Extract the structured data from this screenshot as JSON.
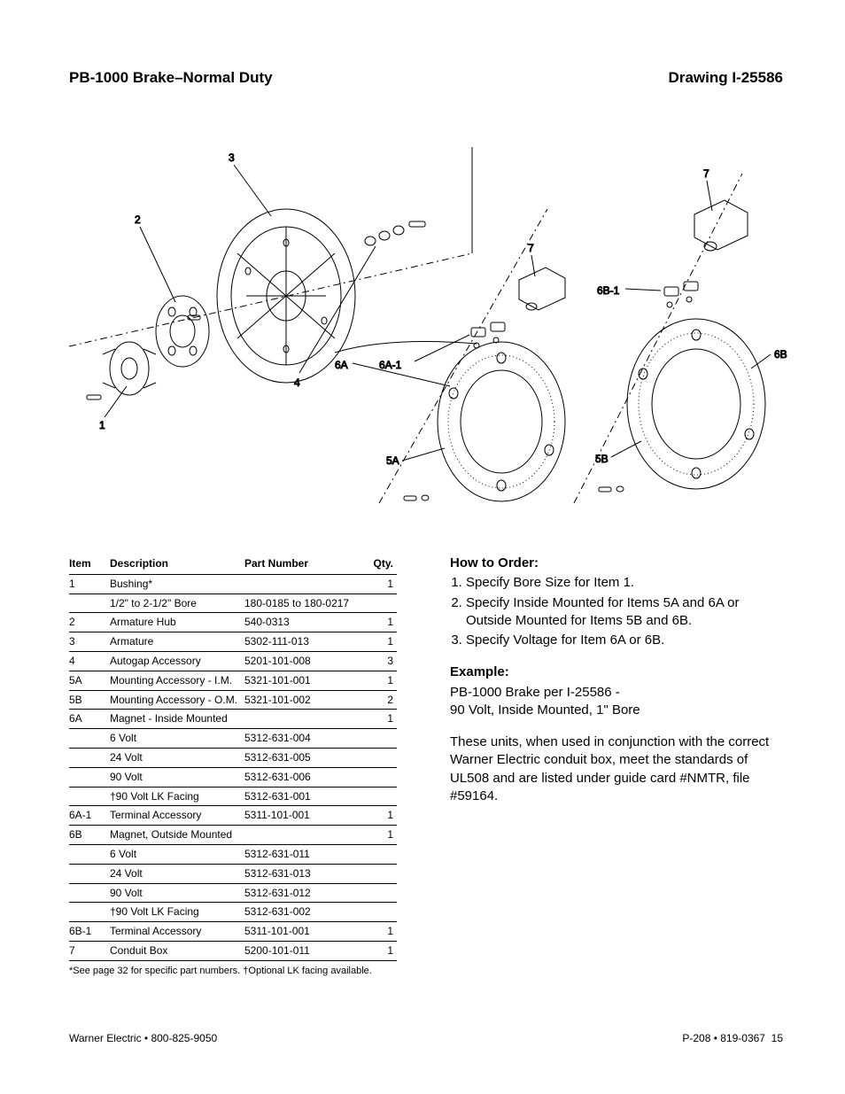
{
  "header": {
    "title_left": "PB-1000 Brake–Normal Duty",
    "title_right": "Drawing I-25586"
  },
  "figure": {
    "callout_font_size": 12,
    "line_color": "#000000",
    "callouts": [
      "1",
      "2",
      "3",
      "4",
      "5A",
      "5B",
      "6A",
      "6A-1",
      "6B",
      "6B-1",
      "7",
      "7"
    ]
  },
  "parts_table": {
    "columns": [
      "Item",
      "Description",
      "Part Number",
      "Qty."
    ],
    "rows": [
      {
        "item": "1",
        "desc": "Bushing*",
        "pn": "",
        "qty": "1"
      },
      {
        "item": "",
        "desc": "1/2\" to 2-1/2\" Bore",
        "pn": "180-0185 to 180-0217",
        "qty": ""
      },
      {
        "item": "2",
        "desc": "Armature Hub",
        "pn": "540-0313",
        "qty": "1"
      },
      {
        "item": "3",
        "desc": "Armature",
        "pn": "5302-111-013",
        "qty": "1"
      },
      {
        "item": "4",
        "desc": "Autogap Accessory",
        "pn": "5201-101-008",
        "qty": "3"
      },
      {
        "item": "5A",
        "desc": "Mounting Accessory - I.M.",
        "pn": "5321-101-001",
        "qty": "1"
      },
      {
        "item": "5B",
        "desc": "Mounting Accessory - O.M.",
        "pn": "5321-101-002",
        "qty": "2"
      },
      {
        "item": "6A",
        "desc": "Magnet - Inside Mounted",
        "pn": "",
        "qty": "1"
      },
      {
        "item": "",
        "desc": "6 Volt",
        "pn": "5312-631-004",
        "qty": ""
      },
      {
        "item": "",
        "desc": "24 Volt",
        "pn": "5312-631-005",
        "qty": ""
      },
      {
        "item": "",
        "desc": "90 Volt",
        "pn": "5312-631-006",
        "qty": ""
      },
      {
        "item": "",
        "desc": "†90 Volt LK Facing",
        "pn": "5312-631-001",
        "qty": ""
      },
      {
        "item": "6A-1",
        "desc": "Terminal Accessory",
        "pn": "5311-101-001",
        "qty": "1"
      },
      {
        "item": "6B",
        "desc": "Magnet, Outside Mounted",
        "pn": "",
        "qty": "1"
      },
      {
        "item": "",
        "desc": "6 Volt",
        "pn": "5312-631-011",
        "qty": ""
      },
      {
        "item": "",
        "desc": "24 Volt",
        "pn": "5312-631-013",
        "qty": ""
      },
      {
        "item": "",
        "desc": "90 Volt",
        "pn": "5312-631-012",
        "qty": ""
      },
      {
        "item": "",
        "desc": "†90 Volt LK Facing",
        "pn": "5312-631-002",
        "qty": ""
      },
      {
        "item": "6B-1",
        "desc": "Terminal Accessory",
        "pn": "5311-101-001",
        "qty": "1"
      },
      {
        "item": "7",
        "desc": "Conduit Box",
        "pn": "5200-101-011",
        "qty": "1"
      }
    ],
    "note": "*See page 32 for specific part numbers. †Optional LK facing available."
  },
  "how_to_order": {
    "heading": "How to Order:",
    "steps": [
      "Specify Bore Size for Item 1.",
      "Specify Inside Mounted for Items 5A and 6A or Outside Mounted for Items 5B and 6B.",
      "Specify Voltage for Item 6A or 6B."
    ]
  },
  "example": {
    "heading": "Example:",
    "line1": "PB-1000 Brake per  I-25586 -",
    "line2": "90 Volt, Inside Mounted, 1\" Bore"
  },
  "compliance_text": "These units, when used in conjunction with the correct Warner Electric conduit box, meet the standards of UL508 and are listed under guide card #NMTR, file #59164.",
  "footer": {
    "left": "Warner Electric • 800-825-9050",
    "right_prefix": "P-208 • 819-0367",
    "page_number": "15"
  }
}
